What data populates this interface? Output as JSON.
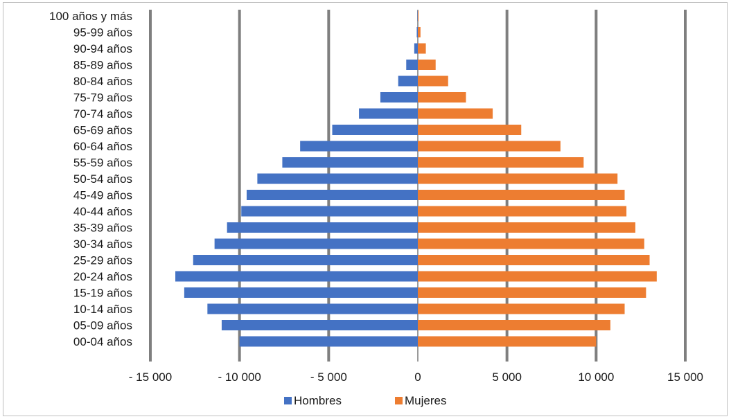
{
  "chart_data": {
    "type": "bar",
    "orientation": "horizontal",
    "categories": [
      "00-04 años",
      "05-09 años",
      "10-14 años",
      "15-19 años",
      "20-24 años",
      "25-29 años",
      "30-34 años",
      "35-39 años",
      "40-44 años",
      "45-49 años",
      "50-54 años",
      "55-59 años",
      "60-64 años",
      "65-69 años",
      "70-74 años",
      "75-79 años",
      "80-84 años",
      "85-89 años",
      "90-94 años",
      "95-99 años",
      "100 años y más"
    ],
    "series": [
      {
        "name": "Hombres",
        "color": "#4472C4",
        "values": [
          -10000,
          -11000,
          -11800,
          -13100,
          -13600,
          -12600,
          -11400,
          -10700,
          -9900,
          -9600,
          -9000,
          -7600,
          -6600,
          -4800,
          -3300,
          -2100,
          -1100,
          -650,
          -200,
          -60,
          -20
        ]
      },
      {
        "name": "Mujeres",
        "color": "#ED7D31",
        "values": [
          10000,
          10800,
          11600,
          12800,
          13400,
          13000,
          12700,
          12200,
          11700,
          11600,
          11200,
          9300,
          8000,
          5800,
          4200,
          2700,
          1700,
          1000,
          450,
          150,
          40
        ]
      }
    ],
    "xlim": [
      -15000,
      15000
    ],
    "xticks": [
      -15000,
      -10000,
      -5000,
      0,
      5000,
      10000,
      15000
    ],
    "xtick_labels": [
      "- 15 000",
      "- 10 000",
      "- 5 000",
      "0",
      "5 000",
      "10 000",
      "15 000"
    ],
    "grid": "vertical",
    "legend": "bottom-center",
    "title": "",
    "xlabel": "",
    "ylabel": ""
  }
}
